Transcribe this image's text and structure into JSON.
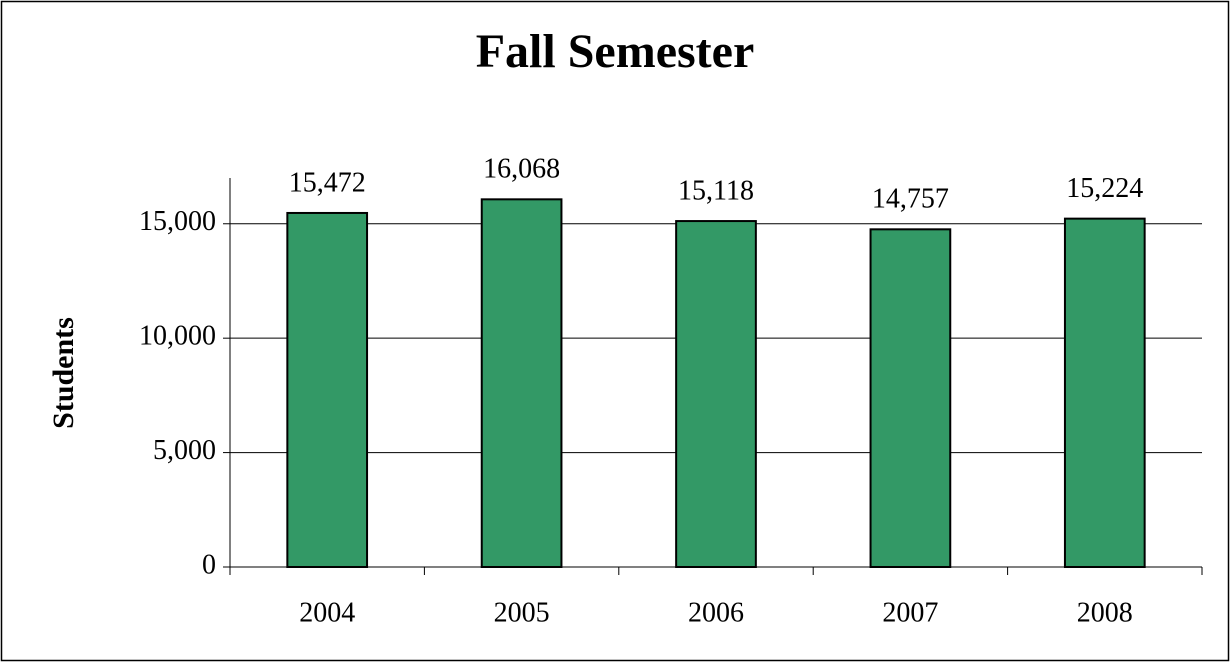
{
  "chart_data": {
    "type": "bar",
    "title": "Fall Semester",
    "y_label": "Students",
    "categories": [
      "2004",
      "2005",
      "2006",
      "2007",
      "2008"
    ],
    "values": [
      15472,
      16068,
      15118,
      14757,
      15224
    ],
    "value_labels": [
      "15,472",
      "16,068",
      "15,118",
      "14,757",
      "15,224"
    ],
    "color": "#339966",
    "ylim": [
      0,
      17000
    ],
    "yticks": [
      0,
      {
        "value": 5000,
        "label": "5,000"
      },
      {
        "value": 10000,
        "label": "10,000"
      },
      {
        "value": 15000,
        "label": "15,000"
      }
    ],
    "grid": true
  }
}
